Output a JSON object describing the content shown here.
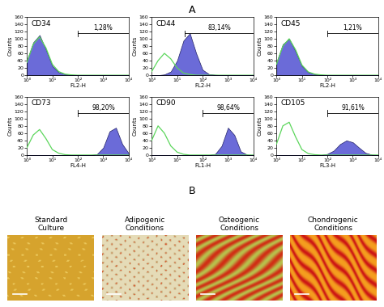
{
  "panel_labels": [
    "A",
    "B"
  ],
  "chart_data": [
    {
      "type": "line",
      "title": "CD34",
      "x_label": "FL2-H",
      "y_label": "Counts",
      "log": "x",
      "x": [
        1,
        1.78,
        3.16,
        5.62,
        10,
        17.8,
        31.6,
        56.2,
        100,
        178,
        316,
        562,
        1000,
        1780,
        3160,
        5620,
        10000
      ],
      "series": [
        {
          "type": "area",
          "color": "#6b6bd8",
          "values": [
            40,
            90,
            110,
            70,
            25,
            8,
            3,
            1,
            0,
            0,
            0,
            0,
            0,
            0,
            0,
            0,
            0
          ]
        },
        {
          "type": "line",
          "color": "#5cd65c",
          "values": [
            35,
            85,
            105,
            75,
            30,
            10,
            3,
            1,
            0,
            0,
            0,
            0,
            0,
            0,
            0,
            0,
            0
          ]
        }
      ],
      "xlim": [
        1,
        10000
      ],
      "ylim": [
        0,
        160
      ],
      "xticks": [
        {
          "value": 1,
          "label": "10⁰"
        },
        {
          "value": 10,
          "label": "10¹"
        },
        {
          "value": 100,
          "label": "10²"
        },
        {
          "value": 1000,
          "label": "10³"
        },
        {
          "value": 10000,
          "label": "10⁴"
        }
      ],
      "yticks": [
        0,
        20,
        40,
        60,
        80,
        100,
        120,
        140,
        160
      ],
      "gate": [
        100,
        10000
      ],
      "gate_label": "1,28%"
    },
    {
      "type": "line",
      "title": "CD44",
      "x_label": "FL2-H",
      "y_label": "Counts",
      "log": "x",
      "x": [
        1,
        1.78,
        3.16,
        5.62,
        10,
        17.8,
        31.6,
        56.2,
        100,
        178,
        316,
        562,
        1000,
        1780,
        3160,
        5620,
        10000
      ],
      "series": [
        {
          "type": "area",
          "color": "#6b6bd8",
          "values": [
            0,
            0,
            2,
            10,
            40,
            95,
            115,
            60,
            15,
            3,
            1,
            0,
            0,
            0,
            0,
            0,
            0
          ]
        },
        {
          "type": "line",
          "color": "#5cd65c",
          "values": [
            10,
            40,
            60,
            45,
            20,
            6,
            2,
            0,
            0,
            0,
            0,
            0,
            0,
            0,
            0,
            0,
            0
          ]
        }
      ],
      "xlim": [
        1,
        10000
      ],
      "ylim": [
        0,
        160
      ],
      "xticks": [
        {
          "value": 1,
          "label": "10⁰"
        },
        {
          "value": 10,
          "label": "10¹"
        },
        {
          "value": 100,
          "label": "10²"
        },
        {
          "value": 1000,
          "label": "10³"
        },
        {
          "value": 10000,
          "label": "10⁴"
        }
      ],
      "yticks": [
        0,
        20,
        40,
        60,
        80,
        100,
        120,
        140,
        160
      ],
      "gate": [
        20,
        10000
      ],
      "gate_label": "83,14%"
    },
    {
      "type": "line",
      "title": "CD45",
      "x_label": "FL2-H",
      "y_label": "Counts",
      "log": "x",
      "x": [
        1,
        1.78,
        3.16,
        5.62,
        10,
        17.8,
        31.6,
        56.2,
        100,
        178,
        316,
        562,
        1000,
        1780,
        3160,
        5620,
        10000
      ],
      "series": [
        {
          "type": "area",
          "color": "#6b6bd8",
          "values": [
            35,
            85,
            100,
            65,
            25,
            8,
            3,
            1,
            0,
            0,
            0,
            0,
            0,
            0,
            0,
            0,
            0
          ]
        },
        {
          "type": "line",
          "color": "#5cd65c",
          "values": [
            30,
            80,
            100,
            70,
            28,
            9,
            3,
            1,
            0,
            0,
            0,
            0,
            0,
            0,
            0,
            0,
            0
          ]
        }
      ],
      "xlim": [
        1,
        10000
      ],
      "ylim": [
        0,
        160
      ],
      "xticks": [
        {
          "value": 1,
          "label": "10⁰"
        },
        {
          "value": 10,
          "label": "10¹"
        },
        {
          "value": 100,
          "label": "10²"
        },
        {
          "value": 1000,
          "label": "10³"
        },
        {
          "value": 10000,
          "label": "10⁴"
        }
      ],
      "yticks": [
        0,
        20,
        40,
        60,
        80,
        100,
        120,
        140,
        160
      ],
      "gate": [
        100,
        10000
      ],
      "gate_label": "1,21%"
    },
    {
      "type": "line",
      "title": "CD73",
      "x_label": "FL4-H",
      "y_label": "Counts",
      "log": "x",
      "x": [
        1,
        1.78,
        3.16,
        5.62,
        10,
        17.8,
        31.6,
        56.2,
        100,
        178,
        316,
        562,
        1000,
        1780,
        3160,
        5620,
        10000
      ],
      "series": [
        {
          "type": "area",
          "color": "#6b6bd8",
          "values": [
            0,
            0,
            0,
            0,
            0,
            0,
            0,
            0,
            0,
            0,
            0,
            2,
            20,
            65,
            75,
            30,
            5
          ]
        },
        {
          "type": "line",
          "color": "#5cd65c",
          "values": [
            20,
            55,
            70,
            45,
            15,
            5,
            1,
            0,
            0,
            0,
            0,
            0,
            0,
            0,
            0,
            0,
            0
          ]
        }
      ],
      "xlim": [
        1,
        10000
      ],
      "ylim": [
        0,
        160
      ],
      "xticks": [
        {
          "value": 1,
          "label": "10⁰"
        },
        {
          "value": 10,
          "label": "10¹"
        },
        {
          "value": 100,
          "label": "10²"
        },
        {
          "value": 1000,
          "label": "10³"
        },
        {
          "value": 10000,
          "label": "10⁴"
        }
      ],
      "yticks": [
        0,
        20,
        40,
        60,
        80,
        100,
        120,
        140,
        160
      ],
      "gate": [
        100,
        10000
      ],
      "gate_label": "98,20%"
    },
    {
      "type": "line",
      "title": "CD90",
      "x_label": "FL1-H",
      "y_label": "Counts",
      "log": "x",
      "x": [
        1,
        1.78,
        3.16,
        5.62,
        10,
        17.8,
        31.6,
        56.2,
        100,
        178,
        316,
        562,
        1000,
        1780,
        3160,
        5620,
        10000
      ],
      "series": [
        {
          "type": "area",
          "color": "#6b6bd8",
          "values": [
            0,
            0,
            0,
            0,
            0,
            0,
            0,
            0,
            0,
            0,
            3,
            25,
            75,
            55,
            10,
            1,
            0
          ]
        },
        {
          "type": "line",
          "color": "#5cd65c",
          "values": [
            40,
            80,
            60,
            25,
            8,
            2,
            0,
            0,
            0,
            0,
            0,
            0,
            0,
            0,
            0,
            0,
            0
          ]
        }
      ],
      "xlim": [
        1,
        10000
      ],
      "ylim": [
        0,
        160
      ],
      "xticks": [
        {
          "value": 1,
          "label": "10⁰"
        },
        {
          "value": 10,
          "label": "10¹"
        },
        {
          "value": 100,
          "label": "10²"
        },
        {
          "value": 1000,
          "label": "10³"
        },
        {
          "value": 10000,
          "label": "10⁴"
        }
      ],
      "yticks": [
        0,
        20,
        40,
        60,
        80,
        100,
        120,
        140,
        160
      ],
      "gate": [
        100,
        10000
      ],
      "gate_label": "98,64%"
    },
    {
      "type": "line",
      "title": "CD105",
      "x_label": "FL3-H",
      "y_label": "Counts",
      "log": "x",
      "x": [
        1,
        1.78,
        3.16,
        5.62,
        10,
        17.8,
        31.6,
        56.2,
        100,
        178,
        316,
        562,
        1000,
        1780,
        3160,
        5620,
        10000
      ],
      "series": [
        {
          "type": "area",
          "color": "#6b6bd8",
          "values": [
            0,
            0,
            0,
            0,
            0,
            0,
            0,
            0,
            3,
            12,
            30,
            40,
            35,
            20,
            6,
            1,
            0
          ]
        },
        {
          "type": "line",
          "color": "#5cd65c",
          "values": [
            30,
            80,
            90,
            50,
            15,
            4,
            1,
            0,
            0,
            0,
            0,
            0,
            0,
            0,
            0,
            0,
            0
          ]
        }
      ],
      "xlim": [
        1,
        10000
      ],
      "ylim": [
        0,
        160
      ],
      "xticks": [
        {
          "value": 1,
          "label": "10⁰"
        },
        {
          "value": 10,
          "label": "10¹"
        },
        {
          "value": 100,
          "label": "10²"
        },
        {
          "value": 1000,
          "label": "10³"
        },
        {
          "value": 10000,
          "label": "10⁴"
        }
      ],
      "yticks": [
        0,
        20,
        40,
        60,
        80,
        100,
        120,
        140,
        160
      ],
      "gate": [
        100,
        10000
      ],
      "gate_label": "91,61%"
    }
  ],
  "images": [
    "Standard\nCulture",
    "Adipogenic\nConditions",
    "Osteogenic\nConditions",
    "Chondrogenic\nConditions"
  ]
}
